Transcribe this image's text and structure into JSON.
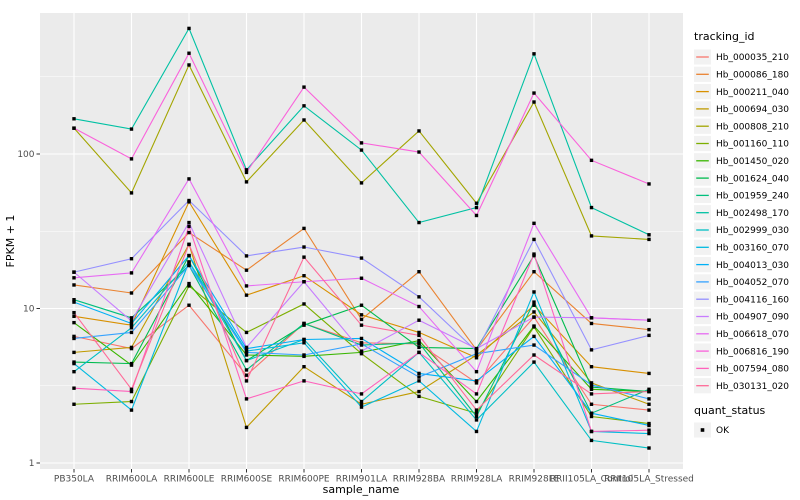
{
  "chart_data": {
    "type": "line",
    "title": "",
    "xlabel": "sample_name",
    "ylabel": "FPKM + 1",
    "legend_title": "tracking_id",
    "y_scale": "log10",
    "y_major_ticks": [
      1,
      10,
      100
    ],
    "y_minor_ticks": [
      3.162,
      31.62,
      316.23
    ],
    "ylim": [
      0.92,
      760
    ],
    "grid": "on",
    "legend_position": "right",
    "panel_bg": "#EBEBEB",
    "grid_color": "#FFFFFF",
    "tick_label_color": "#4D4D4D",
    "point_shape": "filled-square",
    "point_color": "#000000",
    "categories": [
      "PB350LA",
      "RRIM600LA",
      "RRIM600LE",
      "RRIM600SE",
      "RRIM600PE",
      "RRIM901LA",
      "RRIM928BA",
      "RRIM928LA",
      "RRIM928LE",
      "RRII105LA_Control",
      "RRII105LA_Stressed"
    ],
    "series": [
      {
        "name": "Hb_000035_210",
        "color": "#F8766D",
        "values": [
          6.6,
          5.5,
          10.5,
          3.7,
          8.0,
          6.0,
          5.9,
          3.3,
          8.8,
          2.4,
          2.2
        ]
      },
      {
        "name": "Hb_000086_180",
        "color": "#EA8331",
        "values": [
          14.2,
          12.6,
          31,
          17.7,
          33,
          8.5,
          17.3,
          5.4,
          17.3,
          8.0,
          7.3
        ]
      },
      {
        "name": "Hb_000211_040",
        "color": "#D89000",
        "values": [
          8.9,
          7.8,
          49,
          12.2,
          16.3,
          9.1,
          7.0,
          4.8,
          10.5,
          4.2,
          3.8
        ]
      },
      {
        "name": "Hb_000694_030",
        "color": "#C09B00",
        "values": [
          5.2,
          5.6,
          26,
          1.7,
          4.2,
          2.4,
          2.9,
          5.0,
          9.5,
          3.3,
          2.4
        ]
      },
      {
        "name": "Hb_000808_210",
        "color": "#A3A500",
        "values": [
          147,
          56,
          377,
          66,
          166,
          65,
          141,
          48,
          217,
          29.5,
          28
        ]
      },
      {
        "name": "Hb_001160_110",
        "color": "#7CAE00",
        "values": [
          2.4,
          2.5,
          14,
          7.0,
          10.7,
          5.1,
          2.7,
          2.1,
          7.6,
          2.0,
          1.8
        ]
      },
      {
        "name": "Hb_001450_020",
        "color": "#39B600",
        "values": [
          8.1,
          4.3,
          14.5,
          5.0,
          4.9,
          5.2,
          6.2,
          2.5,
          7.7,
          3.0,
          2.9
        ]
      },
      {
        "name": "Hb_001624_040",
        "color": "#00BB4E",
        "values": [
          4.5,
          4.4,
          22,
          4.6,
          7.8,
          10.5,
          5.6,
          5.5,
          22,
          3.1,
          2.9
        ]
      },
      {
        "name": "Hb_001959_240",
        "color": "#00BF7D",
        "values": [
          11.4,
          8.7,
          19,
          4.0,
          8.0,
          5.8,
          6.0,
          2.0,
          11,
          2.1,
          3.0
        ]
      },
      {
        "name": "Hb_002498_170",
        "color": "#00C1A3",
        "values": [
          169,
          145,
          650,
          79,
          205,
          106,
          36,
          45,
          445,
          45,
          30
        ]
      },
      {
        "name": "Hb_002999_030",
        "color": "#00BFC4",
        "values": [
          3.9,
          7.5,
          20,
          4.6,
          6.3,
          2.5,
          5.2,
          1.9,
          4.5,
          1.4,
          1.25
        ]
      },
      {
        "name": "Hb_003160_070",
        "color": "#00BAE0",
        "values": [
          4.4,
          2.2,
          20,
          5.3,
          6.0,
          2.3,
          3.4,
          1.6,
          12.8,
          1.6,
          1.55
        ]
      },
      {
        "name": "Hb_004013_030",
        "color": "#00B0F6",
        "values": [
          11.0,
          8.0,
          22,
          5.5,
          6.3,
          6.4,
          3.8,
          3.4,
          6.6,
          2.1,
          1.75
        ]
      },
      {
        "name": "Hb_004052_070",
        "color": "#35A2FF",
        "values": [
          6.4,
          7.0,
          19,
          5.2,
          5.0,
          5.9,
          3.6,
          5.1,
          5.8,
          3.2,
          2.6
        ]
      },
      {
        "name": "Hb_004116_160",
        "color": "#9590FF",
        "values": [
          17.2,
          21,
          50,
          21.9,
          25,
          21.2,
          11.9,
          5.3,
          28,
          5.4,
          6.7
        ]
      },
      {
        "name": "Hb_004907_090",
        "color": "#C77CFF",
        "values": [
          17.2,
          8.3,
          36,
          5.6,
          14.9,
          5.3,
          8.4,
          5.5,
          8.8,
          8.7,
          8.4
        ]
      },
      {
        "name": "Hb_006618_070",
        "color": "#E76BF3",
        "values": [
          15.8,
          17.0,
          69,
          14.0,
          14.9,
          15.7,
          10.3,
          3.9,
          35.6,
          8.7,
          8.4
        ]
      },
      {
        "name": "Hb_006816_190",
        "color": "#FA62DB",
        "values": [
          147,
          93,
          449,
          76,
          271,
          118,
          103,
          40,
          248,
          91,
          64
        ]
      },
      {
        "name": "Hb_007594_080",
        "color": "#FF62BC",
        "values": [
          3.05,
          2.9,
          34,
          2.6,
          3.4,
          2.8,
          5.2,
          2.8,
          22.5,
          1.6,
          1.63
        ]
      },
      {
        "name": "Hb_030131_020",
        "color": "#FF6A98",
        "values": [
          9.4,
          3.0,
          26,
          3.4,
          21.5,
          7.8,
          6.7,
          2.2,
          5.0,
          2.8,
          2.9
        ]
      }
    ],
    "quant_legend": {
      "title": "quant_status",
      "items": [
        {
          "label": "OK"
        }
      ]
    }
  }
}
